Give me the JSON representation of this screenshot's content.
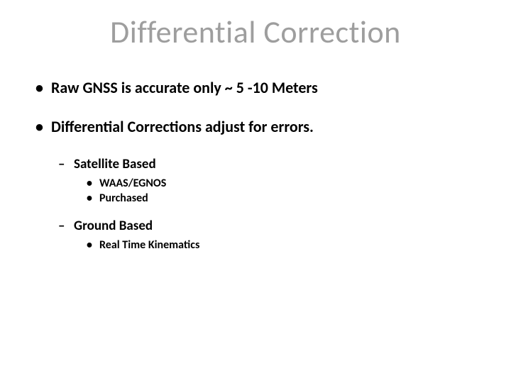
{
  "slide": {
    "title": "Differential Correction",
    "title_color": "#9e9e9e",
    "title_fontsize": 44,
    "background_color": "#ffffff",
    "body_color": "#000000",
    "bullets": {
      "item1": "Raw GNSS is accurate only ~ 5 -10 Meters",
      "item2": "Differential Corrections adjust for errors.",
      "item2_sub1": "Satellite Based",
      "item2_sub1_a": "WAAS/EGNOS",
      "item2_sub1_b": "Purchased",
      "item2_sub2": "Ground Based",
      "item2_sub2_a": "Real Time Kinematics"
    },
    "fontsize_l1": 22,
    "fontsize_l2": 19,
    "fontsize_l3": 16
  }
}
